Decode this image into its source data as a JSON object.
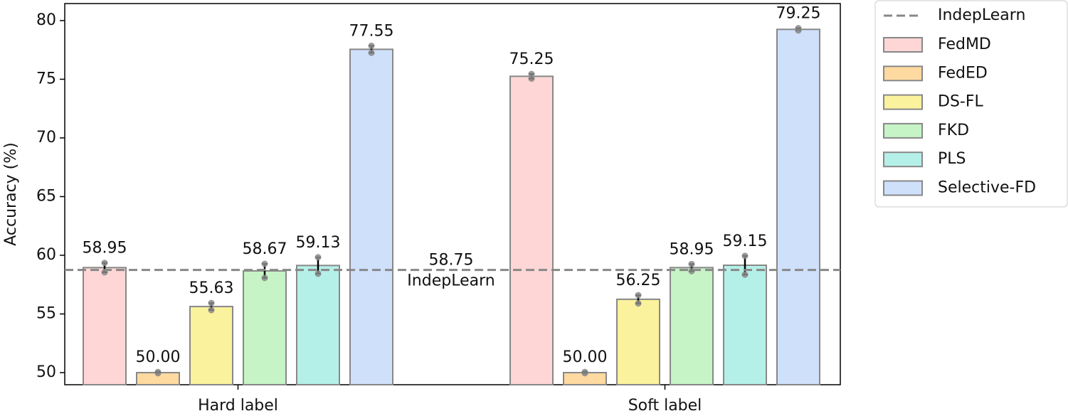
{
  "chart_data": {
    "type": "bar",
    "y_label": "Accuracy (%)",
    "categories": [
      "Hard label",
      "Soft label"
    ],
    "series": [
      {
        "name": "FedMD",
        "color": "#ffd6d6",
        "values": [
          58.95,
          75.25
        ],
        "value_labels": [
          "58.95",
          "75.25"
        ],
        "errors": [
          0.4,
          0.2
        ]
      },
      {
        "name": "FedED",
        "color": "#fed9a0",
        "values": [
          50.0,
          50.0
        ],
        "value_labels": [
          "50.00",
          "50.00"
        ],
        "errors": [
          0.05,
          0.05
        ]
      },
      {
        "name": "DS-FL",
        "color": "#fbf29d",
        "values": [
          55.63,
          56.25
        ],
        "value_labels": [
          "55.63",
          "56.25"
        ],
        "errors": [
          0.3,
          0.35
        ]
      },
      {
        "name": "FKD",
        "color": "#c6f4c6",
        "values": [
          58.67,
          58.95
        ],
        "value_labels": [
          "58.67",
          "58.95"
        ],
        "errors": [
          0.6,
          0.3
        ]
      },
      {
        "name": "PLS",
        "color": "#b5f0e8",
        "values": [
          59.13,
          59.15
        ],
        "value_labels": [
          "59.13",
          "59.15"
        ],
        "errors": [
          0.7,
          0.8
        ]
      },
      {
        "name": "Selective-FD",
        "color": "#cfe0fb",
        "values": [
          77.55,
          79.25
        ],
        "value_labels": [
          "77.55",
          "79.25"
        ],
        "errors": [
          0.3,
          0.1
        ]
      }
    ],
    "reference": {
      "name": "IndepLearn",
      "value": 58.75,
      "color": "#888888"
    },
    "ylim": [
      48.97,
      81.45
    ],
    "yticks": [
      50,
      55,
      60,
      65,
      70,
      75,
      80
    ],
    "legend": "outside-upper-right"
  }
}
